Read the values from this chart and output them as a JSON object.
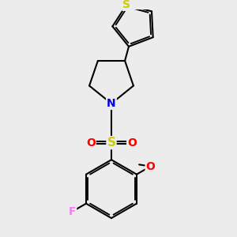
{
  "background_color": "#ececec",
  "bond_color": "#000000",
  "bond_lw": 1.5,
  "dbo": 0.055,
  "atom_colors": {
    "S_thio": "#cccc00",
    "S_sul": "#cccc00",
    "N": "#0000ee",
    "O": "#ff0000",
    "F": "#ee82ee",
    "C": "#000000"
  },
  "figsize": [
    3.0,
    3.0
  ],
  "dpi": 100,
  "xlim": [
    -1.8,
    2.2
  ],
  "ylim": [
    -3.2,
    3.2
  ]
}
